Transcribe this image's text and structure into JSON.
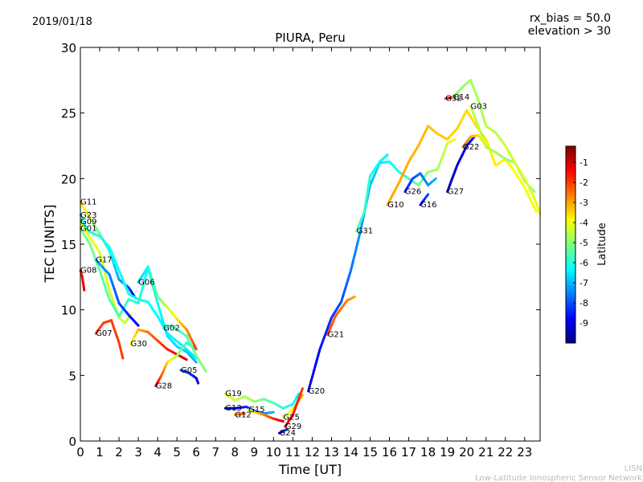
{
  "header": {
    "date": "2019/01/18",
    "rx_bias": "rx_bias = 50.0",
    "elevation": "elevation > 30"
  },
  "footer": {
    "line1": "LISN",
    "line2": "Low-Latitude Ionospheric Sensor Network"
  },
  "chart_data": {
    "type": "scatter",
    "title": "PIURA, Peru",
    "xlabel": "Time [UT]",
    "ylabel": "TEC [UNITS]",
    "xlim": [
      0,
      23.8
    ],
    "ylim": [
      0,
      30
    ],
    "xticks": [
      "0",
      "1",
      "2",
      "3",
      "4",
      "5",
      "6",
      "7",
      "8",
      "9",
      "10",
      "11",
      "12",
      "13",
      "14",
      "15",
      "16",
      "17",
      "18",
      "19",
      "20",
      "21",
      "22",
      "23"
    ],
    "yticks": [
      "0",
      "5",
      "10",
      "15",
      "20",
      "25",
      "30"
    ],
    "grid": false,
    "colorbar": {
      "label": "Latitude",
      "range": [
        -10,
        -0.2
      ],
      "ticks": [
        "-1",
        "-2",
        "-3",
        "-4",
        "-5",
        "-6",
        "-7",
        "-8",
        "-9"
      ],
      "colormap": [
        "#00007f",
        "#0000ff",
        "#007fff",
        "#00ffff",
        "#7fff7f",
        "#ffff00",
        "#ff7f00",
        "#ff0000",
        "#7f0000"
      ]
    },
    "series": [
      {
        "name": "G11",
        "lat_start": -3.5,
        "lat_end": -9,
        "points": [
          [
            0,
            18.2
          ],
          [
            0.5,
            17
          ],
          [
            1,
            15.8
          ],
          [
            1.5,
            14.5
          ],
          [
            2,
            12.3
          ],
          [
            2.5,
            11.7
          ],
          [
            2.8,
            11
          ]
        ]
      },
      {
        "name": "G23",
        "lat_start": -6,
        "lat_end": -6.5,
        "points": [
          [
            0,
            17.2
          ],
          [
            0.4,
            16
          ],
          [
            1,
            15.6
          ],
          [
            1.5,
            14.8
          ],
          [
            2,
            13
          ],
          [
            2.5,
            11.2
          ],
          [
            3,
            10.8
          ],
          [
            3.5,
            10.6
          ],
          [
            4,
            9.5
          ],
          [
            4.5,
            8.2
          ],
          [
            5,
            7.6
          ],
          [
            5.5,
            7
          ],
          [
            6,
            6.3
          ]
        ]
      },
      {
        "name": "G09",
        "lat_start": -4,
        "lat_end": -4.5,
        "points": [
          [
            0,
            16.7
          ],
          [
            0.5,
            15.5
          ],
          [
            1,
            14.4
          ],
          [
            1.5,
            11.5
          ],
          [
            2,
            9.4
          ],
          [
            2.3,
            9
          ],
          [
            2.6,
            9.6
          ]
        ]
      },
      {
        "name": "G01",
        "lat_start": -5,
        "lat_end": -7,
        "points": [
          [
            0,
            16.2
          ],
          [
            0.5,
            15
          ],
          [
            1,
            13
          ],
          [
            1.5,
            10.8
          ],
          [
            2,
            9.5
          ],
          [
            2.5,
            10.8
          ],
          [
            3,
            10.5
          ],
          [
            3.5,
            13.2
          ],
          [
            4,
            10.5
          ],
          [
            4.5,
            8
          ],
          [
            5,
            7.2
          ],
          [
            5.5,
            6.8
          ],
          [
            6,
            6
          ]
        ]
      },
      {
        "name": "G08",
        "lat_start": -2,
        "lat_end": -1,
        "points": [
          [
            0,
            13
          ],
          [
            0.1,
            12.5
          ],
          [
            0.2,
            11.5
          ]
        ]
      },
      {
        "name": "G17",
        "lat_start": -7,
        "lat_end": -9,
        "points": [
          [
            0.8,
            13.8
          ],
          [
            1.5,
            12.7
          ],
          [
            2,
            10.5
          ],
          [
            2.5,
            9.6
          ],
          [
            3,
            8.8
          ]
        ]
      },
      {
        "name": "G07",
        "lat_start": -2,
        "lat_end": -2,
        "points": [
          [
            0.8,
            8.2
          ],
          [
            1.2,
            9
          ],
          [
            1.6,
            9.2
          ],
          [
            2,
            7.5
          ],
          [
            2.2,
            6.3
          ]
        ]
      },
      {
        "name": "G30",
        "lat_start": -4,
        "lat_end": -1,
        "points": [
          [
            2.6,
            7.4
          ],
          [
            3,
            8.5
          ],
          [
            3.5,
            8.3
          ],
          [
            4.5,
            7
          ],
          [
            5.5,
            6.2
          ]
        ]
      },
      {
        "name": "G28",
        "lat_start": -1,
        "lat_end": -7,
        "points": [
          [
            3.9,
            4.2
          ],
          [
            4.2,
            5
          ],
          [
            4.5,
            6
          ],
          [
            5,
            6.5
          ],
          [
            5.5,
            7.5
          ],
          [
            6,
            7
          ]
        ]
      },
      {
        "name": "G06",
        "lat_start": -7,
        "lat_end": -2,
        "points": [
          [
            3,
            12.1
          ],
          [
            3.5,
            13.3
          ],
          [
            4,
            11
          ],
          [
            4.5,
            10.2
          ],
          [
            5,
            9.3
          ],
          [
            5.5,
            8.5
          ],
          [
            6,
            7
          ]
        ]
      },
      {
        "name": "G02",
        "lat_start": -6,
        "lat_end": -5,
        "points": [
          [
            4.3,
            8.6
          ],
          [
            4.7,
            8.8
          ],
          [
            5.5,
            8
          ],
          [
            6,
            6.5
          ],
          [
            6.5,
            5.3
          ]
        ]
      },
      {
        "name": "G05",
        "lat_start": -8,
        "lat_end": -9,
        "points": [
          [
            5.2,
            5.4
          ],
          [
            5.6,
            5.2
          ],
          [
            6,
            4.8
          ],
          [
            6.1,
            4.4
          ]
        ]
      },
      {
        "name": "G19",
        "lat_start": -4,
        "lat_end": -6.5,
        "points": [
          [
            7.5,
            3.6
          ],
          [
            8,
            3.1
          ],
          [
            8.5,
            3.4
          ],
          [
            9,
            3
          ],
          [
            9.5,
            3.2
          ],
          [
            10,
            2.9
          ],
          [
            10.5,
            2.5
          ],
          [
            11,
            2.8
          ],
          [
            11.3,
            3.6
          ]
        ]
      },
      {
        "name": "G13",
        "lat_start": -9.5,
        "lat_end": -7,
        "points": [
          [
            7.5,
            2.5
          ],
          [
            8,
            2.5
          ],
          [
            8.6,
            2.6
          ],
          [
            9,
            2.3
          ],
          [
            9.5,
            2.1
          ],
          [
            10,
            2.2
          ]
        ]
      },
      {
        "name": "G12",
        "lat_start": -3,
        "lat_end": -2,
        "points": [
          [
            8,
            2
          ],
          [
            8.5,
            2.1
          ]
        ]
      },
      {
        "name": "G15",
        "lat_start": -4.5,
        "lat_end": -1,
        "points": [
          [
            8.7,
            2.4
          ],
          [
            9,
            2.2
          ],
          [
            9.5,
            2
          ],
          [
            10,
            1.7
          ],
          [
            10.5,
            1.5
          ]
        ]
      },
      {
        "name": "G25",
        "lat_start": -4.5,
        "lat_end": -3,
        "points": [
          [
            10.5,
            1.8
          ],
          [
            11,
            2.4
          ],
          [
            11.5,
            3.5
          ]
        ]
      },
      {
        "name": "G29",
        "lat_start": -1,
        "lat_end": -2,
        "points": [
          [
            10.6,
            1.1
          ],
          [
            11,
            2
          ],
          [
            11.5,
            4
          ]
        ]
      },
      {
        "name": "G24",
        "lat_start": -9.5,
        "lat_end": -8,
        "points": [
          [
            10.3,
            0.6
          ],
          [
            10.7,
            0.9
          ]
        ]
      },
      {
        "name": "G20",
        "lat_start": -9,
        "lat_end": -4,
        "points": [
          [
            11.8,
            3.8
          ],
          [
            12.4,
            7
          ],
          [
            13,
            9.4
          ],
          [
            13.5,
            10.6
          ],
          [
            14,
            13
          ],
          [
            14.5,
            16
          ],
          [
            15,
            19.5
          ],
          [
            15.5,
            21.2
          ],
          [
            16,
            21.3
          ],
          [
            16.5,
            20.5
          ],
          [
            17,
            20
          ],
          [
            17.5,
            19.5
          ],
          [
            18,
            20.5
          ],
          [
            18.5,
            20.7
          ],
          [
            19,
            22.7
          ],
          [
            19.4,
            23
          ]
        ]
      },
      {
        "name": "G21",
        "lat_start": -2,
        "lat_end": -3,
        "points": [
          [
            12.8,
            8.1
          ],
          [
            13.2,
            9.5
          ],
          [
            13.8,
            10.7
          ],
          [
            14.2,
            11
          ]
        ]
      },
      {
        "name": "G31",
        "lat_start": -5.5,
        "lat_end": -6.5,
        "points": [
          [
            14.3,
            16
          ],
          [
            14.7,
            17.5
          ],
          [
            15,
            20.2
          ],
          [
            15.5,
            21.3
          ],
          [
            15.9,
            21.8
          ]
        ]
      },
      {
        "name": "G10",
        "lat_start": -3,
        "lat_end": -4,
        "points": [
          [
            15.9,
            18
          ],
          [
            16.5,
            19.7
          ],
          [
            17,
            21.3
          ],
          [
            17.5,
            22.5
          ],
          [
            18,
            24
          ],
          [
            18.5,
            23.4
          ],
          [
            19,
            23
          ],
          [
            19.5,
            23.8
          ],
          [
            20,
            25.2
          ],
          [
            20.5,
            24
          ],
          [
            21,
            23
          ],
          [
            21.5,
            21
          ],
          [
            22,
            21.5
          ],
          [
            22.5,
            20.5
          ],
          [
            23,
            19.3
          ],
          [
            23.6,
            17.5
          ]
        ]
      },
      {
        "name": "G26",
        "lat_start": -8.5,
        "lat_end": -7,
        "points": [
          [
            16.8,
            19
          ],
          [
            17.2,
            20
          ],
          [
            17.6,
            20.4
          ],
          [
            18,
            19.5
          ],
          [
            18.4,
            20
          ]
        ]
      },
      {
        "name": "G16",
        "lat_start": -9,
        "lat_end": -8,
        "points": [
          [
            17.6,
            18
          ],
          [
            18,
            18.8
          ]
        ]
      },
      {
        "name": "G27",
        "lat_start": -9.5,
        "lat_end": -8.5,
        "points": [
          [
            19,
            19
          ],
          [
            19.5,
            21
          ],
          [
            20,
            22.5
          ],
          [
            20.4,
            23.2
          ]
        ]
      },
      {
        "name": "G22",
        "lat_start": -2.5,
        "lat_end": -4,
        "points": [
          [
            19.8,
            22.4
          ],
          [
            20.2,
            23.2
          ],
          [
            20.6,
            23.3
          ],
          [
            21,
            22.5
          ]
        ]
      },
      {
        "name": "G03",
        "lat_start": -4.5,
        "lat_end": -5,
        "points": [
          [
            20.2,
            25.5
          ],
          [
            20.6,
            24
          ],
          [
            21,
            22.4
          ],
          [
            21.5,
            22
          ],
          [
            22,
            21.5
          ],
          [
            22.5,
            21.2
          ],
          [
            23,
            19.8
          ],
          [
            23.5,
            19
          ]
        ]
      },
      {
        "name": "G32",
        "lat_start": -2,
        "lat_end": -1,
        "points": [
          [
            18.9,
            26.1
          ],
          [
            19.3,
            26.2
          ]
        ]
      },
      {
        "name": "G14",
        "lat_start": -5,
        "lat_end": -4,
        "points": [
          [
            19.3,
            26.2
          ],
          [
            19.8,
            27
          ],
          [
            20.2,
            27.5
          ],
          [
            20.6,
            26
          ],
          [
            21,
            24
          ],
          [
            21.5,
            23.5
          ],
          [
            22,
            22.5
          ],
          [
            22.5,
            21.2
          ],
          [
            23,
            20
          ],
          [
            23.5,
            18.5
          ],
          [
            23.8,
            17.3
          ]
        ]
      }
    ]
  }
}
